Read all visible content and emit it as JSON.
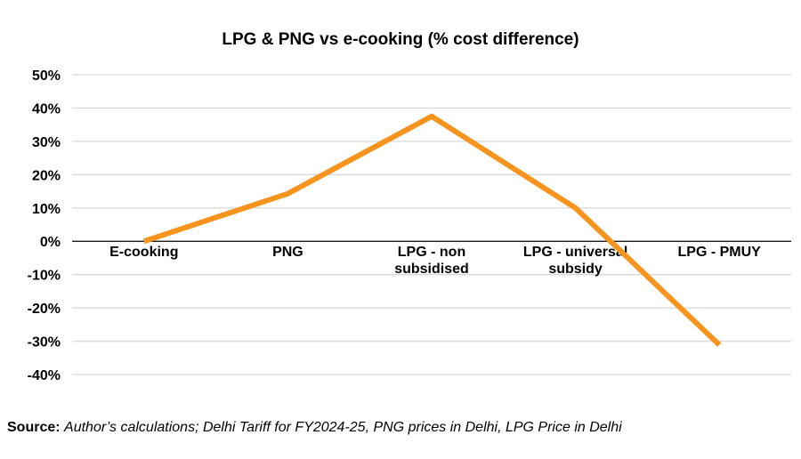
{
  "chart_data": {
    "type": "line",
    "title": "LPG & PNG vs e-cooking (% cost difference)",
    "categories": [
      "E-cooking",
      "PNG",
      "LPG - non subsidised",
      "LPG - universal subsidy",
      "LPG - PMUY"
    ],
    "category_lines": [
      [
        "E-cooking"
      ],
      [
        "PNG"
      ],
      [
        "LPG - non",
        "subsidised"
      ],
      [
        "LPG - universal",
        "subsidy"
      ],
      [
        "LPG - PMUY"
      ]
    ],
    "series": [
      {
        "values": [
          0,
          14.3,
          37.5,
          10,
          -31.1
        ],
        "color": "#F7941D"
      }
    ],
    "ylim": [
      -40,
      50
    ],
    "yticks": [
      50,
      40,
      30,
      20,
      10,
      0,
      -10,
      -20,
      -30,
      -40
    ],
    "ytick_labels": [
      "50%",
      "40%",
      "30%",
      "20%",
      "10%",
      "0%",
      "-10%",
      "-20%",
      "-30%",
      "-40%"
    ],
    "xlabel": "",
    "ylabel": "",
    "grid": true,
    "legend": "none"
  },
  "source": {
    "label": "Source:",
    "text": "Author’s calculations; Delhi Tariff for FY2024-25, PNG prices in Delhi, LPG Price in Delhi"
  }
}
